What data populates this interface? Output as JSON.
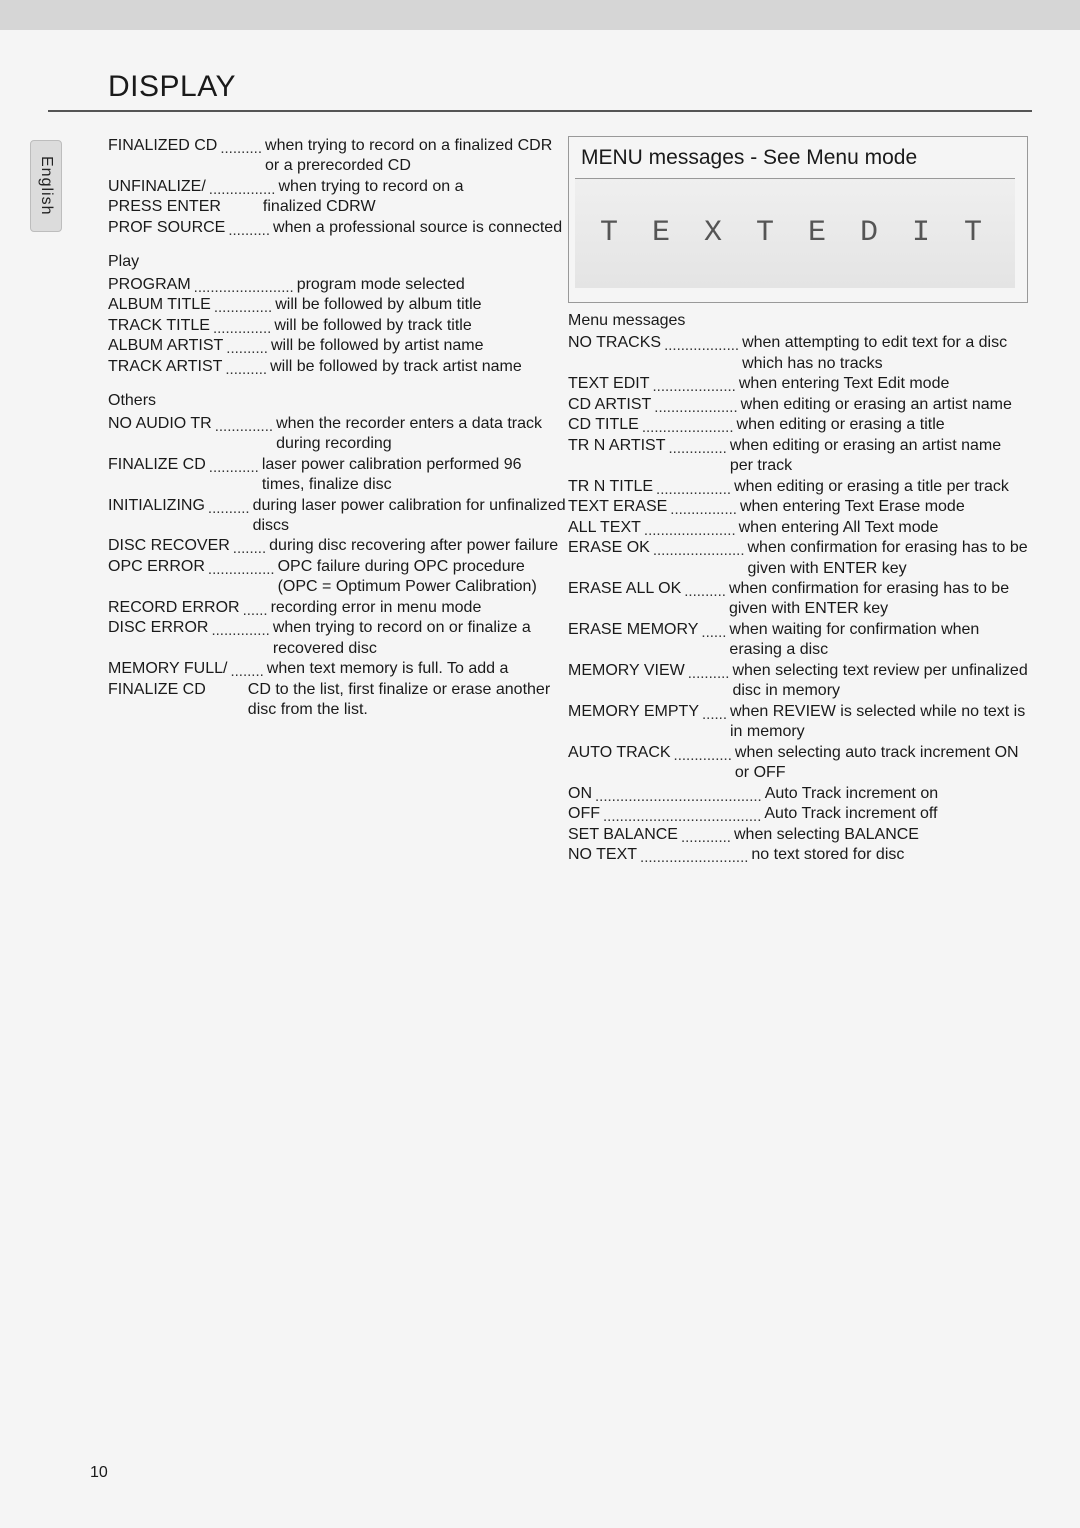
{
  "page": {
    "title": "DISPLAY",
    "side_tab": "English",
    "page_number": "10"
  },
  "left_col": {
    "entries_top": [
      {
        "term": "FINALIZED CD",
        "dots": 5,
        "desc": "when trying to record on a finalized CDR or a prerecorded CD"
      },
      {
        "term": "UNFINALIZE/",
        "dots": 8,
        "desc": "when trying to record on a"
      },
      {
        "term": "PRESS ENTER",
        "dots": 0,
        "desc": "finalized CDRW",
        "no_dots": true,
        "indent_desc": true
      },
      {
        "term": "PROF SOURCE",
        "dots": 5,
        "desc": "when a professional source is connected"
      }
    ],
    "play_head": "Play",
    "entries_play": [
      {
        "term": "PROGRAM",
        "dots": 12,
        "desc": "program mode selected"
      },
      {
        "term": "ALBUM TITLE",
        "dots": 7,
        "desc": "will be followed by album title"
      },
      {
        "term": "TRACK TITLE",
        "dots": 7,
        "desc": "will be followed by track title"
      },
      {
        "term": "ALBUM ARTIST",
        "dots": 5,
        "desc": "will be followed by artist name"
      },
      {
        "term": "TRACK ARTIST",
        "dots": 5,
        "desc": "will be followed by track artist name"
      }
    ],
    "others_head": "Others",
    "entries_others": [
      {
        "term": "NO AUDIO TR",
        "dots": 7,
        "desc": "when the recorder enters a data track during recording"
      },
      {
        "term": "FINALIZE CD",
        "dots": 6,
        "desc": "laser power calibration performed 96 times, finalize disc"
      },
      {
        "term": "INITIALIZING",
        "dots": 5,
        "desc": "during laser power calibration for unfinalized discs"
      },
      {
        "term": "DISC RECOVER",
        "dots": 4,
        "desc": "during disc recovering after power failure"
      },
      {
        "term": "OPC ERROR",
        "dots": 8,
        "desc": "OPC failure during OPC procedure (OPC = Optimum Power Calibration)"
      },
      {
        "term": "RECORD ERROR",
        "dots": 3,
        "desc": "recording error in menu mode"
      },
      {
        "term": "DISC ERROR",
        "dots": 7,
        "desc": "when trying to record on or finalize a recovered disc"
      },
      {
        "term": "MEMORY FULL/",
        "dots": 4,
        "desc": "when text memory is full. To add a"
      },
      {
        "term": "FINALIZE CD",
        "dots": 0,
        "desc": "CD to the list, first finalize or erase another disc from the list.",
        "no_dots": true,
        "indent_desc": true
      }
    ]
  },
  "right_col": {
    "menu_title": "MENU messages - See Menu mode",
    "lcd_sample": "T E X T   E D I T",
    "menu_sub": "Menu messages",
    "entries": [
      {
        "term": "NO TRACKS",
        "dots": 9,
        "desc": "when attempting to edit text for a disc which has no tracks"
      },
      {
        "term": "TEXT EDIT",
        "dots": 10,
        "desc": "when entering Text Edit mode"
      },
      {
        "term": "CD ARTIST",
        "dots": 10,
        "desc": "when editing or erasing an artist name"
      },
      {
        "term": "CD TITLE",
        "dots": 11,
        "desc": "when editing or erasing a title"
      },
      {
        "term": "TR N ARTIST",
        "dots": 7,
        "desc": "when editing or erasing an artist name per track"
      },
      {
        "term": "TR N TITLE",
        "dots": 9,
        "desc": "when editing or erasing a title per track"
      },
      {
        "term": "TEXT ERASE",
        "dots": 8,
        "desc": "when entering Text Erase mode"
      },
      {
        "term": "ALL TEXT",
        "dots": 11,
        "desc": "when entering All Text mode"
      },
      {
        "term": "ERASE OK",
        "dots": 11,
        "desc": "when confirmation for erasing has to be given with ENTER key"
      },
      {
        "term": "ERASE ALL OK",
        "dots": 5,
        "desc": "when confirmation for erasing has to be given with ENTER key"
      },
      {
        "term": "ERASE MEMORY",
        "dots": 3,
        "desc": "when waiting for confirmation when erasing a disc"
      },
      {
        "term": "MEMORY VIEW",
        "dots": 5,
        "desc": "when selecting text review per unfinalized disc in memory"
      },
      {
        "term": "MEMORY EMPTY",
        "dots": 3,
        "desc": "when REVIEW is selected while no text is in memory"
      },
      {
        "term": "AUTO TRACK",
        "dots": 7,
        "desc": "when selecting auto track increment ON or OFF"
      },
      {
        "term": "ON",
        "dots": 20,
        "desc": "Auto Track increment on"
      },
      {
        "term": "OFF",
        "dots": 19,
        "desc": "Auto Track increment off"
      },
      {
        "term": "SET BALANCE",
        "dots": 6,
        "desc": "when selecting BALANCE"
      },
      {
        "term": "NO TEXT",
        "dots": 13,
        "desc": "no text stored for disc"
      }
    ]
  }
}
